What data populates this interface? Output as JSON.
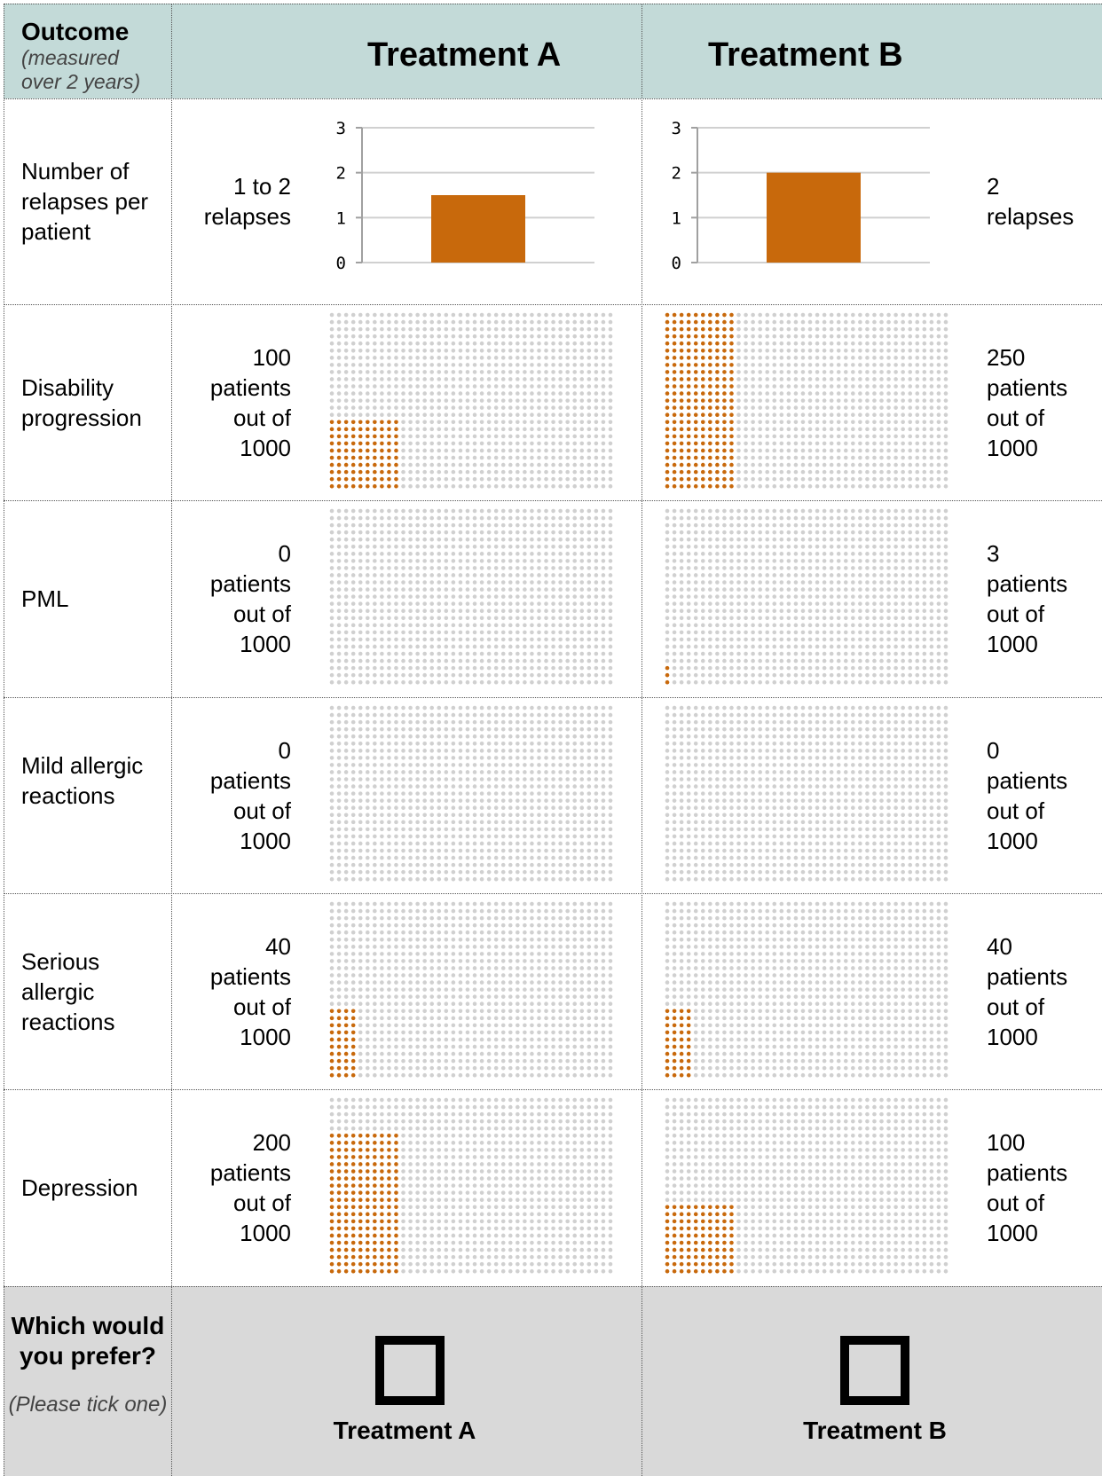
{
  "header": {
    "outcome_label": "Outcome",
    "outcome_note": "(measured over 2 years)",
    "treatment_a": "Treatment A",
    "treatment_b": "Treatment B"
  },
  "rows": [
    {
      "label": "Number of relapses per patient",
      "a_text": [
        "1 to 2",
        "relapses"
      ],
      "b_text": [
        "2",
        "relapses"
      ]
    },
    {
      "label": "Disability progression",
      "a_text": [
        "100",
        "patients",
        "out of",
        "1000"
      ],
      "b_text": [
        "250",
        "patients",
        "out of",
        "1000"
      ]
    },
    {
      "label": "PML",
      "a_text": [
        "0",
        "patients",
        "out of",
        "1000"
      ],
      "b_text": [
        "3",
        "patients",
        "out of",
        "1000"
      ]
    },
    {
      "label": "Mild allergic reactions",
      "a_text": [
        "0",
        "patients",
        "out of",
        "1000"
      ],
      "b_text": [
        "0",
        "patients",
        "out of",
        "1000"
      ]
    },
    {
      "label": "Serious allergic reactions",
      "a_text": [
        "40",
        "patients",
        "out of",
        "1000"
      ],
      "b_text": [
        "40",
        "patients",
        "out of",
        "1000"
      ]
    },
    {
      "label": "Depression",
      "a_text": [
        "200",
        "patients",
        "out of",
        "1000"
      ],
      "b_text": [
        "100",
        "patients",
        "out of",
        "1000"
      ]
    }
  ],
  "footer": {
    "question": "Which would you prefer?",
    "hint": "(Please tick one)",
    "choice_a": "Treatment A",
    "choice_b": "Treatment B"
  },
  "chart_data": [
    {
      "type": "bar",
      "id": "relapses-a",
      "categories": [
        ""
      ],
      "values": [
        1.5
      ],
      "ylim": [
        0,
        3
      ],
      "yticks": [
        "0",
        "1",
        "2",
        "3"
      ],
      "grid": true,
      "color": "#c8690c"
    },
    {
      "type": "bar",
      "id": "relapses-b",
      "categories": [
        ""
      ],
      "values": [
        2
      ],
      "ylim": [
        0,
        3
      ],
      "yticks": [
        "0",
        "1",
        "2",
        "3"
      ],
      "grid": true,
      "color": "#c8690c"
    },
    {
      "type": "icon-array",
      "total": 1000,
      "highlight_color": "#c8690c",
      "base_color": "#d0d0d0",
      "series": [
        {
          "name": "Treatment A",
          "values": [
            100,
            0,
            0,
            40,
            200
          ]
        },
        {
          "name": "Treatment B",
          "values": [
            250,
            3,
            0,
            40,
            100
          ]
        }
      ],
      "categories": [
        "Disability progression",
        "PML",
        "Mild allergic reactions",
        "Serious allergic reactions",
        "Depression"
      ]
    }
  ]
}
